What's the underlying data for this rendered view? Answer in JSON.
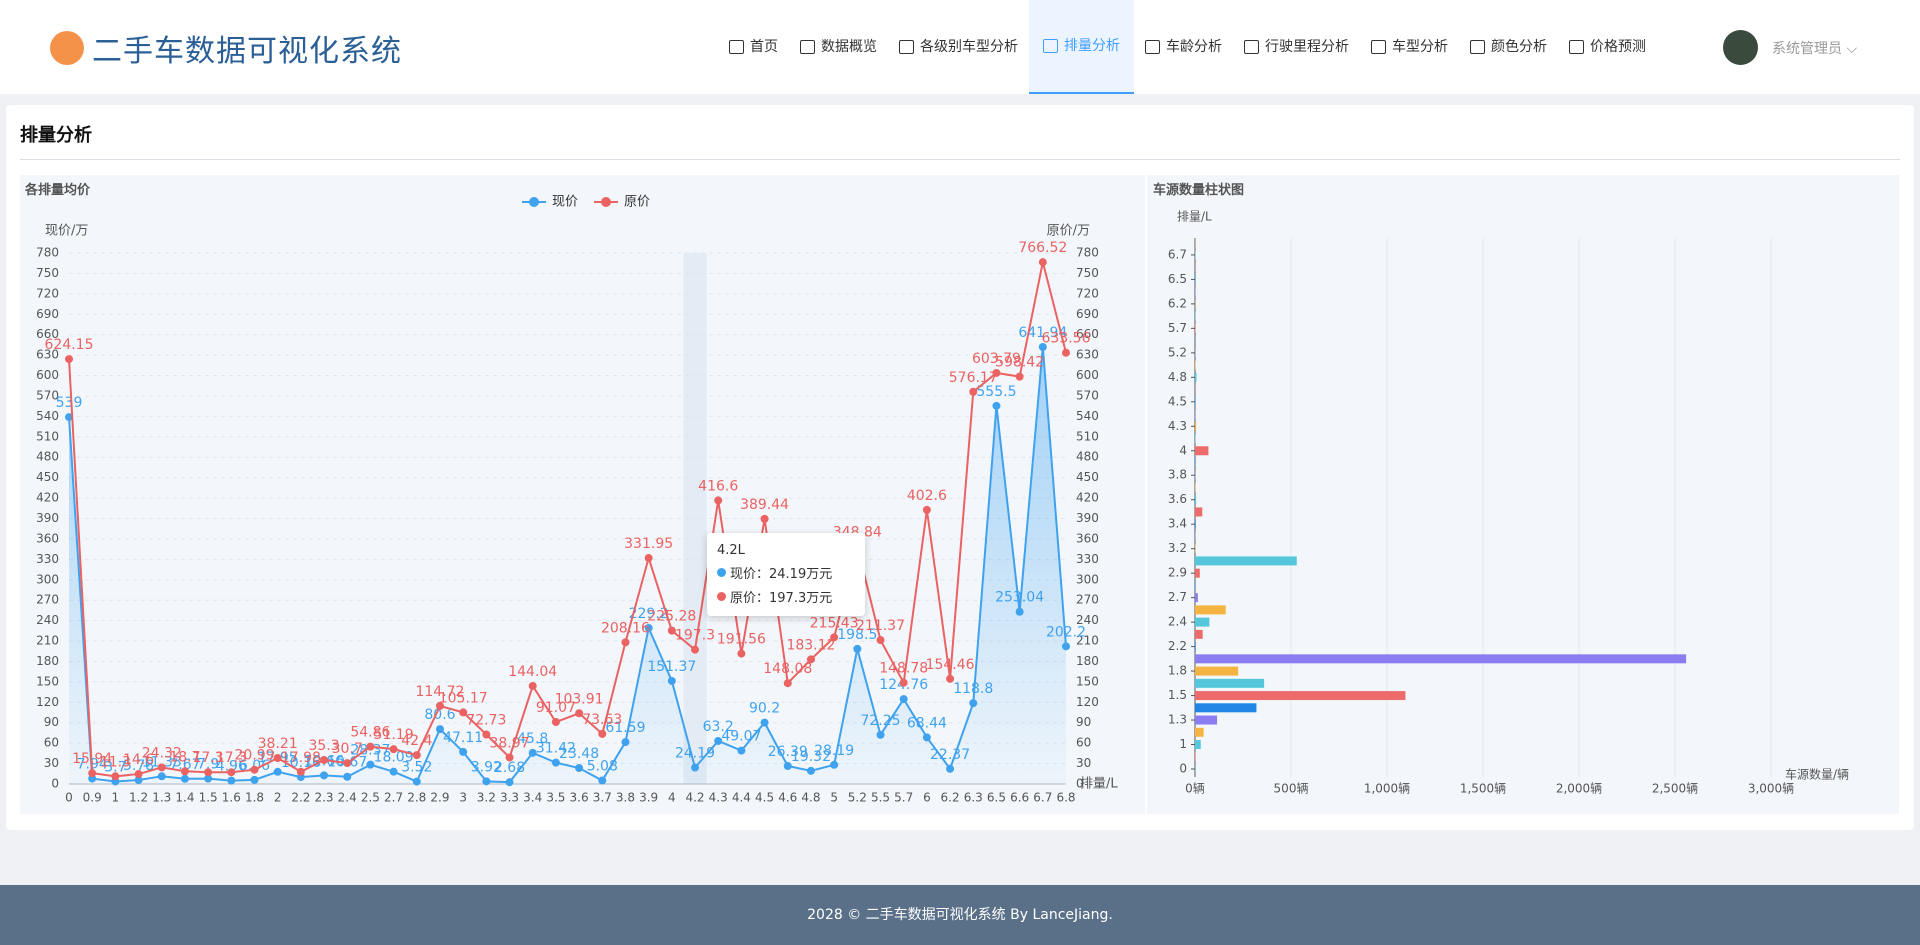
{
  "header": {
    "title": "二手车数据可视化系统",
    "nav": [
      "首页",
      "数据概览",
      "各级别车型分析",
      "排量分析",
      "车龄分析",
      "行驶里程分析",
      "车型分析",
      "颜色分析",
      "价格预测"
    ],
    "user": "系统管理员"
  },
  "page_title": "排量分析",
  "chart_data": [
    {
      "type": "line",
      "title": "各排量均价",
      "y_label": "现价/万",
      "y2_label": "原价/万",
      "x_label": "排量/L",
      "categories": [
        "0",
        "0.9",
        "1",
        "1.2",
        "1.3",
        "1.4",
        "1.5",
        "1.6",
        "1.8",
        "2",
        "2.2",
        "2.3",
        "2.4",
        "2.5",
        "2.7",
        "2.8",
        "2.9",
        "3",
        "3.2",
        "3.3",
        "3.4",
        "3.5",
        "3.6",
        "3.7",
        "3.8",
        "3.9",
        "4",
        "4.2",
        "4.3",
        "4.4",
        "4.5",
        "4.6",
        "4.8",
        "5",
        "5.2",
        "5.5",
        "5.7",
        "6",
        "6.2",
        "6.3",
        "6.5",
        "6.6",
        "6.7",
        "6.8"
      ],
      "series": [
        {
          "name": "现价",
          "color": "#3fa2ef",
          "area": true,
          "values": [
            539,
            7.94,
            3.7,
            5.78,
            11.33,
            7.67,
            7.9,
            4.96,
            6.06,
            17.95,
            10.16,
            12.66,
            10.67,
            28.37,
            18.09,
            3.52,
            80.6,
            47.11,
            3.92,
            2.68,
            45.8,
            31.42,
            23.48,
            5.08,
            61.59,
            229.2,
            151.37,
            24.19,
            63.2,
            49.07,
            90.2,
            26.39,
            19.32,
            28.19,
            198.5,
            72.25,
            124.76,
            68.44,
            22.37,
            118.8,
            555.5,
            253.04,
            641.94,
            202.2
          ]
        },
        {
          "name": "原价",
          "color": "#ea6262",
          "axis": "y2",
          "values": [
            624.15,
            15.94,
            11.3,
            14.6,
            24.32,
            18.7,
            17.3,
            17.3,
            20.99,
            38.21,
            17.98,
            35.3,
            30.7,
            54.86,
            51.19,
            42.4,
            114.72,
            105.17,
            72.73,
            38.97,
            144.04,
            91.07,
            103.91,
            73.63,
            208.16,
            331.95,
            225.28,
            197.3,
            416.6,
            191.56,
            389.44,
            148.08,
            183.12,
            215.43,
            348.84,
            211.37,
            148.78,
            402.6,
            154.46,
            576.17,
            603.79,
            598.42,
            766.52,
            633.56
          ]
        }
      ],
      "ylim": [
        0,
        780
      ],
      "yticks": [
        0,
        30,
        60,
        90,
        120,
        150,
        180,
        210,
        240,
        270,
        300,
        330,
        360,
        390,
        420,
        450,
        480,
        510,
        540,
        570,
        600,
        630,
        660,
        690,
        720,
        750,
        780
      ],
      "y2lim": [
        0,
        780
      ],
      "y2ticks": [
        0,
        30,
        60,
        90,
        120,
        150,
        180,
        210,
        240,
        270,
        300,
        330,
        360,
        390,
        420,
        450,
        480,
        510,
        540,
        570,
        600,
        630,
        660,
        690,
        720,
        750,
        780
      ],
      "grid": true,
      "legend": "top",
      "tooltip": {
        "title": "4.2L",
        "rows": [
          "现价：24.19万元",
          "原价：197.3万元"
        ]
      }
    },
    {
      "type": "hbar",
      "title": "车源数量柱状图",
      "y_label": "排量/L",
      "x_label": "车源数量/辆",
      "categories": [
        "0",
        null,
        "1",
        null,
        "1.3",
        null,
        "1.5",
        null,
        "1.8",
        null,
        "2.2",
        null,
        "2.4",
        null,
        "2.7",
        null,
        "2.9",
        null,
        "3.2",
        null,
        "3.4",
        null,
        "3.6",
        null,
        "3.8",
        null,
        "4",
        null,
        "4.3",
        null,
        "4.5",
        null,
        "4.8",
        null,
        "5.2",
        null,
        "5.7",
        null,
        "6.2",
        null,
        "6.5",
        null,
        "6.7",
        null
      ],
      "values": [
        2,
        3,
        30,
        45,
        115,
        320,
        1096,
        360,
        225,
        2558,
        4,
        40,
        75,
        160,
        15,
        3,
        25,
        530,
        2,
        3,
        4,
        38,
        6,
        2,
        2,
        3,
        70,
        3,
        6,
        2,
        3,
        1,
        8,
        3,
        2,
        1,
        3,
        2,
        1,
        2,
        3,
        1,
        2,
        1
      ],
      "colors": [
        "#1f86e6",
        "#ee6b6b",
        "#55c7dc",
        "#f5b342",
        "#8b7cf2"
      ],
      "xlim": [
        0,
        3000
      ],
      "xticks": [
        {
          "value": 0,
          "label": "0辆"
        },
        {
          "value": 500,
          "label": "500辆"
        },
        {
          "value": 1000,
          "label": "1,000辆"
        },
        {
          "value": 1500,
          "label": "1,500辆"
        },
        {
          "value": 2000,
          "label": "2,000辆"
        },
        {
          "value": 2500,
          "label": "2,500辆"
        },
        {
          "value": 3000,
          "label": "3,000辆"
        }
      ],
      "grid": true
    }
  ],
  "footer": "2028 © 二手车数据可视化系统 By LanceJiang."
}
